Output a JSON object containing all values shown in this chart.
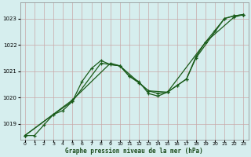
{
  "title": "Graphe pression niveau de la mer (hPa)",
  "bg_color": "#d6eeee",
  "grid_color": "#c8a8a8",
  "line_color": "#1a5c1a",
  "xlim": [
    -0.5,
    23.5
  ],
  "ylim": [
    1018.4,
    1023.6
  ],
  "yticks": [
    1019,
    1020,
    1021,
    1022,
    1023
  ],
  "xticks": [
    0,
    1,
    2,
    3,
    4,
    5,
    6,
    7,
    8,
    9,
    10,
    11,
    12,
    13,
    14,
    15,
    16,
    17,
    18,
    19,
    20,
    21,
    22,
    23
  ],
  "series1": [
    [
      0,
      1018.55
    ],
    [
      1,
      1018.55
    ],
    [
      2,
      1018.95
    ],
    [
      3,
      1019.35
    ],
    [
      4,
      1019.5
    ],
    [
      5,
      1019.85
    ],
    [
      6,
      1020.6
    ],
    [
      7,
      1021.1
    ],
    [
      8,
      1021.4
    ],
    [
      9,
      1021.25
    ],
    [
      10,
      1021.2
    ],
    [
      11,
      1020.8
    ],
    [
      12,
      1020.55
    ],
    [
      13,
      1020.25
    ],
    [
      14,
      1020.15
    ],
    [
      15,
      1020.2
    ],
    [
      16,
      1020.45
    ],
    [
      17,
      1020.7
    ],
    [
      18,
      1021.55
    ],
    [
      19,
      1022.1
    ],
    [
      20,
      1022.55
    ],
    [
      21,
      1023.0
    ],
    [
      22,
      1023.1
    ],
    [
      23,
      1023.15
    ]
  ],
  "series2": [
    [
      0,
      1018.55
    ],
    [
      3,
      1019.35
    ],
    [
      5,
      1019.85
    ],
    [
      8,
      1021.3
    ],
    [
      10,
      1021.2
    ],
    [
      11,
      1020.8
    ],
    [
      12,
      1020.6
    ],
    [
      13,
      1020.15
    ],
    [
      14,
      1020.05
    ],
    [
      15,
      1020.2
    ],
    [
      16,
      1020.45
    ],
    [
      17,
      1020.7
    ],
    [
      18,
      1021.5
    ],
    [
      21,
      1023.0
    ],
    [
      22,
      1023.1
    ],
    [
      23,
      1023.15
    ]
  ],
  "series3": [
    [
      0,
      1018.55
    ],
    [
      5,
      1019.9
    ],
    [
      9,
      1021.3
    ],
    [
      10,
      1021.2
    ],
    [
      13,
      1020.25
    ],
    [
      15,
      1020.2
    ],
    [
      19,
      1022.1
    ],
    [
      22,
      1023.05
    ],
    [
      23,
      1023.15
    ]
  ]
}
